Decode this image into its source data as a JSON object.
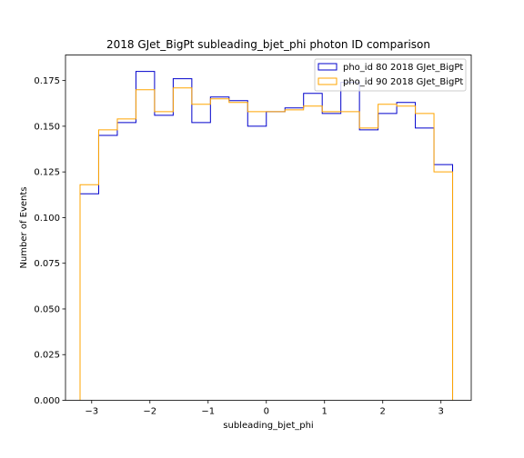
{
  "chart_data": {
    "type": "line",
    "step_histogram": true,
    "title": "2018 GJet_BigPt subleading_bjet_phi photon ID comparison",
    "xlabel": "subleading_bjet_phi",
    "ylabel": "Number of Events",
    "xlim": [
      -3.45,
      3.52
    ],
    "ylim": [
      0.0,
      0.189
    ],
    "xticks": [
      -3,
      -2,
      -1,
      0,
      1,
      2,
      3
    ],
    "xtick_labels": [
      "−3",
      "−2",
      "−1",
      "0",
      "1",
      "2",
      "3"
    ],
    "yticks": [
      0.0,
      0.025,
      0.05,
      0.075,
      0.1,
      0.125,
      0.15,
      0.175
    ],
    "ytick_labels": [
      "0.000",
      "0.025",
      "0.050",
      "0.075",
      "0.100",
      "0.125",
      "0.150",
      "0.175"
    ],
    "bin_edges": [
      -3.2,
      -2.88,
      -2.56,
      -2.24,
      -1.92,
      -1.6,
      -1.28,
      -0.96,
      -0.64,
      -0.32,
      0.0,
      0.32,
      0.64,
      0.96,
      1.28,
      1.6,
      1.92,
      2.24,
      2.56,
      2.88,
      3.2
    ],
    "grid": false,
    "legend_position": "top-right",
    "series": [
      {
        "name": "pho_id 80 2018 GJet_BigPt",
        "color": "#0000cc",
        "values": [
          0.113,
          0.145,
          0.152,
          0.18,
          0.156,
          0.176,
          0.152,
          0.166,
          0.164,
          0.15,
          0.158,
          0.16,
          0.168,
          0.157,
          0.174,
          0.148,
          0.157,
          0.163,
          0.149,
          0.129
        ]
      },
      {
        "name": "pho_id 90 2018 GJet_BigPt",
        "color": "#ffa500",
        "values": [
          0.118,
          0.148,
          0.154,
          0.17,
          0.158,
          0.171,
          0.162,
          0.165,
          0.163,
          0.158,
          0.158,
          0.159,
          0.161,
          0.158,
          0.158,
          0.149,
          0.162,
          0.161,
          0.157,
          0.125
        ]
      }
    ]
  }
}
